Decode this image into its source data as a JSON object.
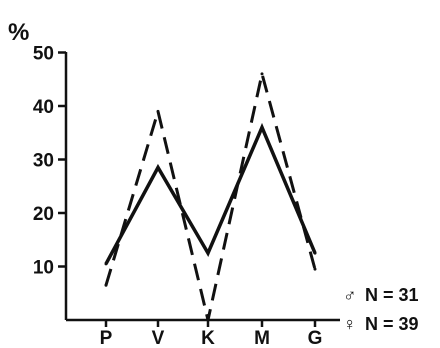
{
  "chart_data": {
    "type": "line",
    "ylabel": "%",
    "ylim": [
      0,
      50
    ],
    "yticks": [
      10,
      20,
      30,
      40,
      50
    ],
    "categories": [
      "P",
      "V",
      "K",
      "M",
      "G"
    ],
    "series": [
      {
        "name": "N = 31",
        "symbol": "♂",
        "style": "solid",
        "color": "#111111",
        "values": [
          10.5,
          28.5,
          12.5,
          36,
          12.5
        ]
      },
      {
        "name": "N = 39",
        "symbol": "♀",
        "style": "dashed",
        "color": "#111111",
        "values": [
          6.5,
          39,
          0,
          46,
          9.5
        ]
      }
    ],
    "legend": "bottom-right",
    "grid": false
  }
}
